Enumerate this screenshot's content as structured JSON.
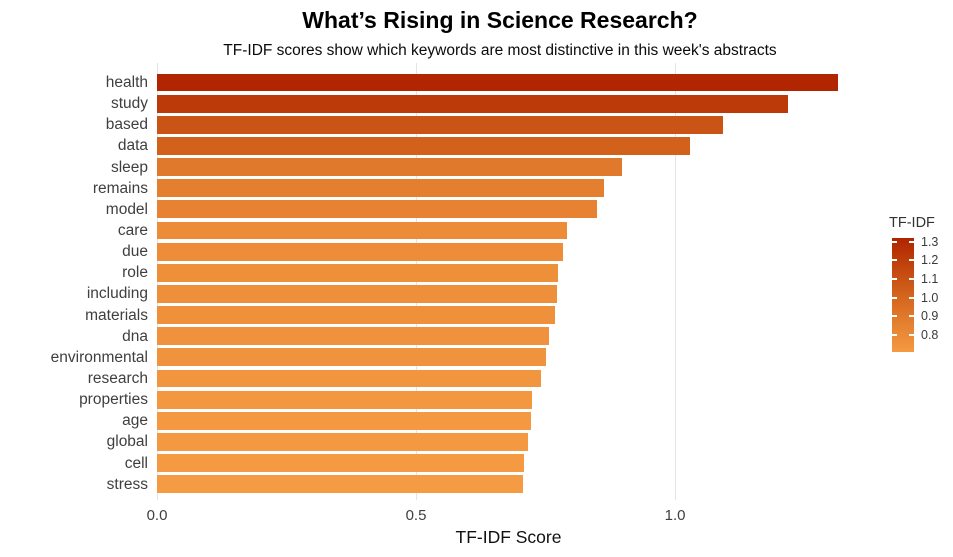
{
  "chart_data": {
    "type": "bar",
    "orientation": "horizontal",
    "title": "What’s Rising in Science Research?",
    "subtitle": "TF-IDF scores show which keywords are most distinctive in this week's abstracts",
    "xlabel": "TF-IDF Score",
    "ylabel": "",
    "categories": [
      "health",
      "study",
      "based",
      "data",
      "sleep",
      "remains",
      "model",
      "care",
      "due",
      "role",
      "including",
      "materials",
      "dna",
      "environmental",
      "research",
      "properties",
      "age",
      "global",
      "cell",
      "stress"
    ],
    "values": [
      1.315,
      1.218,
      1.092,
      1.029,
      0.897,
      0.863,
      0.85,
      0.792,
      0.784,
      0.775,
      0.772,
      0.768,
      0.757,
      0.751,
      0.741,
      0.723,
      0.721,
      0.717,
      0.709,
      0.707
    ],
    "xlim": [
      0,
      1.357
    ],
    "x_ticks": [
      {
        "value": 0.0,
        "label": "0.0"
      },
      {
        "value": 0.5,
        "label": "0.5"
      },
      {
        "value": 1.0,
        "label": "1.0"
      }
    ],
    "grid": true,
    "legend_position": "right",
    "legend": {
      "title": "TF-IDF",
      "domain": [
        0.71,
        1.32
      ],
      "ticks": [
        {
          "value": 1.3,
          "label": "1.3"
        },
        {
          "value": 1.2,
          "label": "1.2"
        },
        {
          "value": 1.1,
          "label": "1.1"
        },
        {
          "value": 1.0,
          "label": "1.0"
        },
        {
          "value": 0.9,
          "label": "0.9"
        },
        {
          "value": 0.8,
          "label": "0.8"
        }
      ]
    },
    "colormap_stops": [
      {
        "value": 0.7,
        "color": "#f69c44"
      },
      {
        "value": 1.0,
        "color": "#d5671e"
      },
      {
        "value": 1.32,
        "color": "#b02400"
      }
    ]
  },
  "colors": {
    "background": "#ffffff",
    "gridline": "#e4e4e4",
    "axis_text": "#3f3f3f",
    "title_text": "#000000",
    "legend_text": "#3a3a3a",
    "bar_min": "#f69c44",
    "bar_max": "#b02400"
  }
}
